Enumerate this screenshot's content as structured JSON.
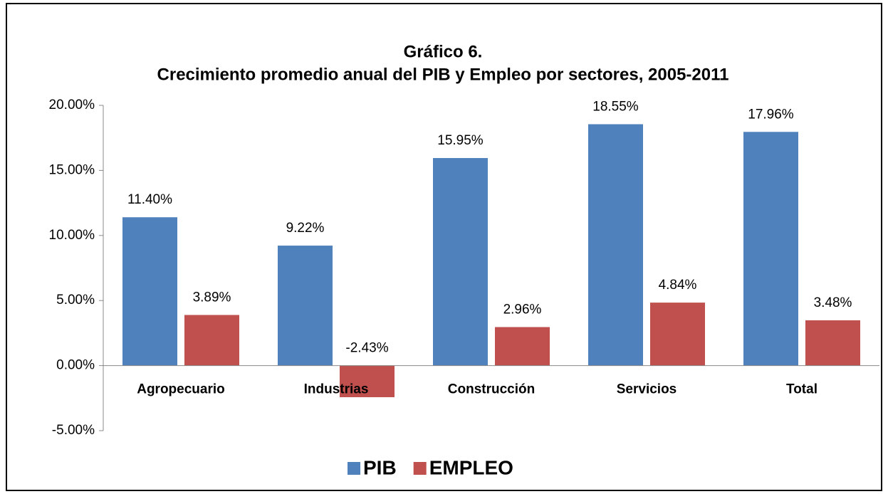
{
  "chart_data": {
    "type": "bar",
    "title": "Gráfico 6.",
    "subtitle": "Crecimiento promedio anual del PIB y Empleo por sectores, 2005-2011",
    "categories": [
      "Agropecuario",
      "Industrias",
      "Construcción",
      "Servicios",
      "Total"
    ],
    "series": [
      {
        "name": "PIB",
        "color": "#4f81bd",
        "values": [
          11.4,
          9.22,
          15.95,
          18.55,
          17.96
        ],
        "value_labels": [
          "11.40%",
          "9.22%",
          "15.95%",
          "18.55%",
          "17.96%"
        ]
      },
      {
        "name": "EMPLEO",
        "color": "#c0504d",
        "values": [
          3.89,
          -2.43,
          2.96,
          4.84,
          3.48
        ],
        "value_labels": [
          "3.89%",
          "-2.43%",
          "2.96%",
          "4.84%",
          "3.48%"
        ]
      }
    ],
    "ylim": [
      -5,
      20
    ],
    "yticks": [
      {
        "value": -5,
        "label": "-5.00%"
      },
      {
        "value": 0,
        "label": "0.00%"
      },
      {
        "value": 5,
        "label": "5.00%"
      },
      {
        "value": 10,
        "label": "10.00%"
      },
      {
        "value": 15,
        "label": "15.00%"
      },
      {
        "value": 20,
        "label": "20.00%"
      }
    ],
    "legend": "bottom"
  }
}
